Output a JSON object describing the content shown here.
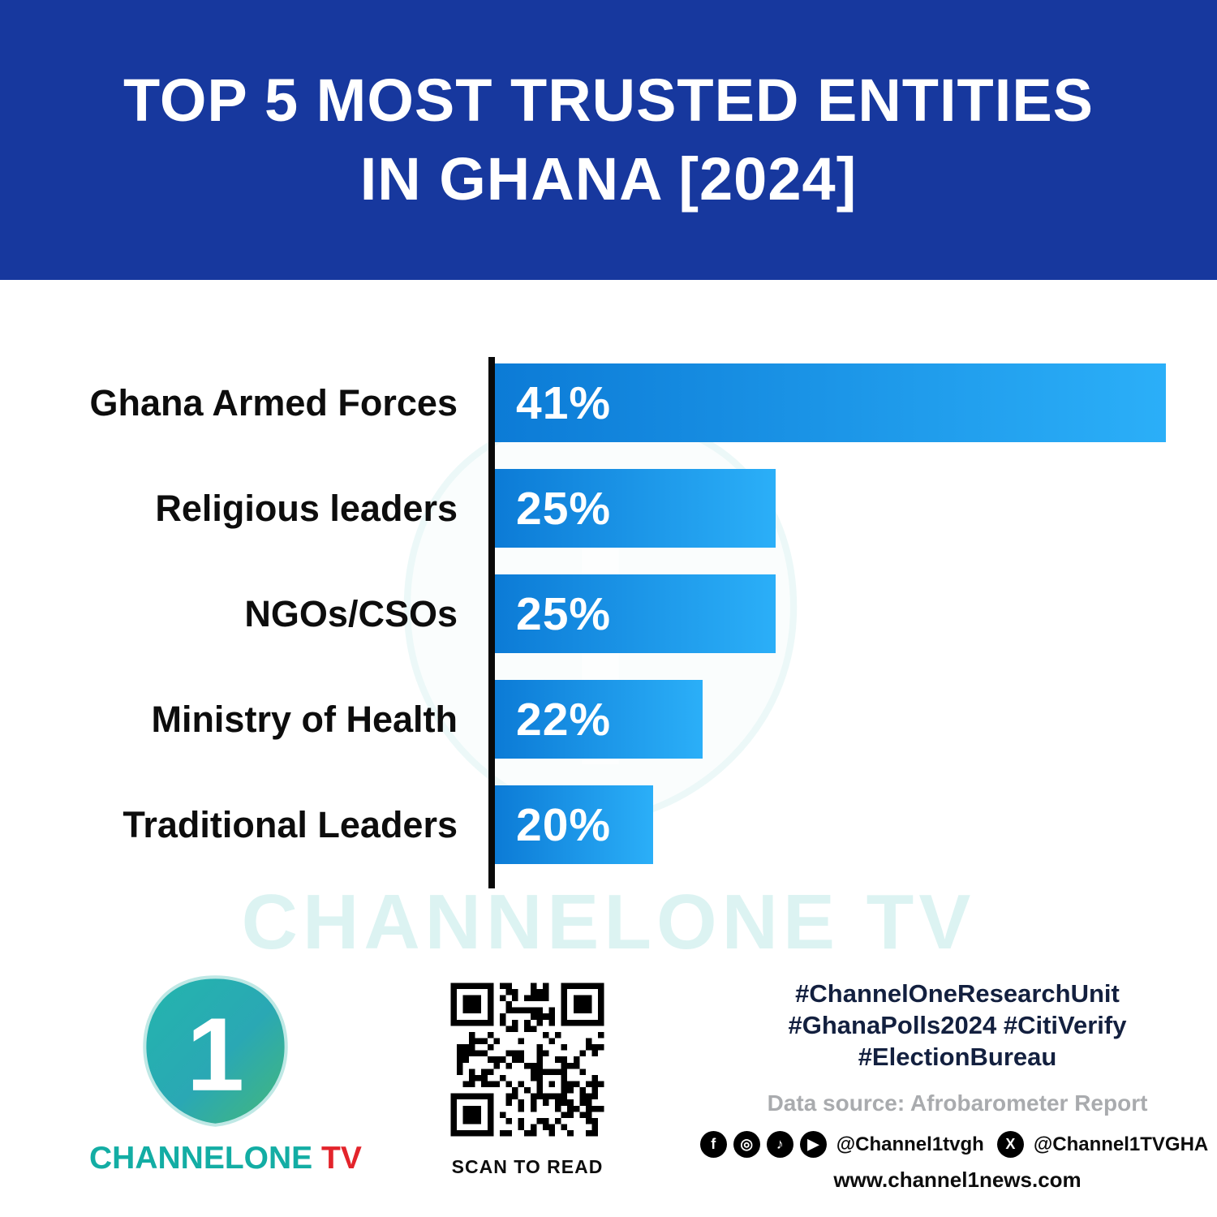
{
  "header": {
    "title_line1": "TOP 5 MOST TRUSTED ENTITIES",
    "title_line2": "IN GHANA [2024]"
  },
  "chart_data": {
    "type": "bar",
    "orientation": "horizontal",
    "title": "TOP 5 MOST TRUSTED ENTITIES IN GHANA [2024]",
    "categories": [
      "Ghana Armed Forces",
      "Religious leaders",
      "NGOs/CSOs",
      "Ministry of Health",
      "Traditional Leaders"
    ],
    "values": [
      41,
      25,
      25,
      22,
      20
    ],
    "value_labels": [
      "41%",
      "25%",
      "25%",
      "22%",
      "20%"
    ],
    "xlabel": "",
    "ylabel": "",
    "legend": false,
    "grid": false,
    "bar_color_start": "#0C7BD6",
    "bar_color_end": "#2BAFF8",
    "axis_visual": {
      "value_at_zero_width": 13.5,
      "max_value": 41
    }
  },
  "watermark": {
    "text": "CHANNELONE TV"
  },
  "footer": {
    "logo": {
      "numeral": "1",
      "brand_channel": "CHANNEL",
      "brand_one": "ONE",
      "brand_tv": " TV"
    },
    "qr_caption": "SCAN TO READ",
    "hashtags_line1": "#ChannelOneResearchUnit",
    "hashtags_line2": "#GhanaPolls2024 #CitiVerify",
    "hashtags_line3": "#ElectionBureau",
    "data_source": "Data source: Afrobarometer Report",
    "social_handle1": "@Channel1tvgh",
    "social_handle2": "@Channel1TVGHA",
    "website": "www.channel1news.com",
    "icons": [
      {
        "name": "facebook-icon",
        "glyph": "f"
      },
      {
        "name": "instagram-icon",
        "glyph": "◎"
      },
      {
        "name": "tiktok-icon",
        "glyph": "♪"
      },
      {
        "name": "youtube-icon",
        "glyph": "▶"
      },
      {
        "name": "x-icon",
        "glyph": "X"
      }
    ]
  },
  "colors": {
    "header_bg": "#17389E",
    "accent_teal": "#13ada4",
    "accent_red": "#e3242b",
    "axis_black": "#0a0a0a"
  }
}
